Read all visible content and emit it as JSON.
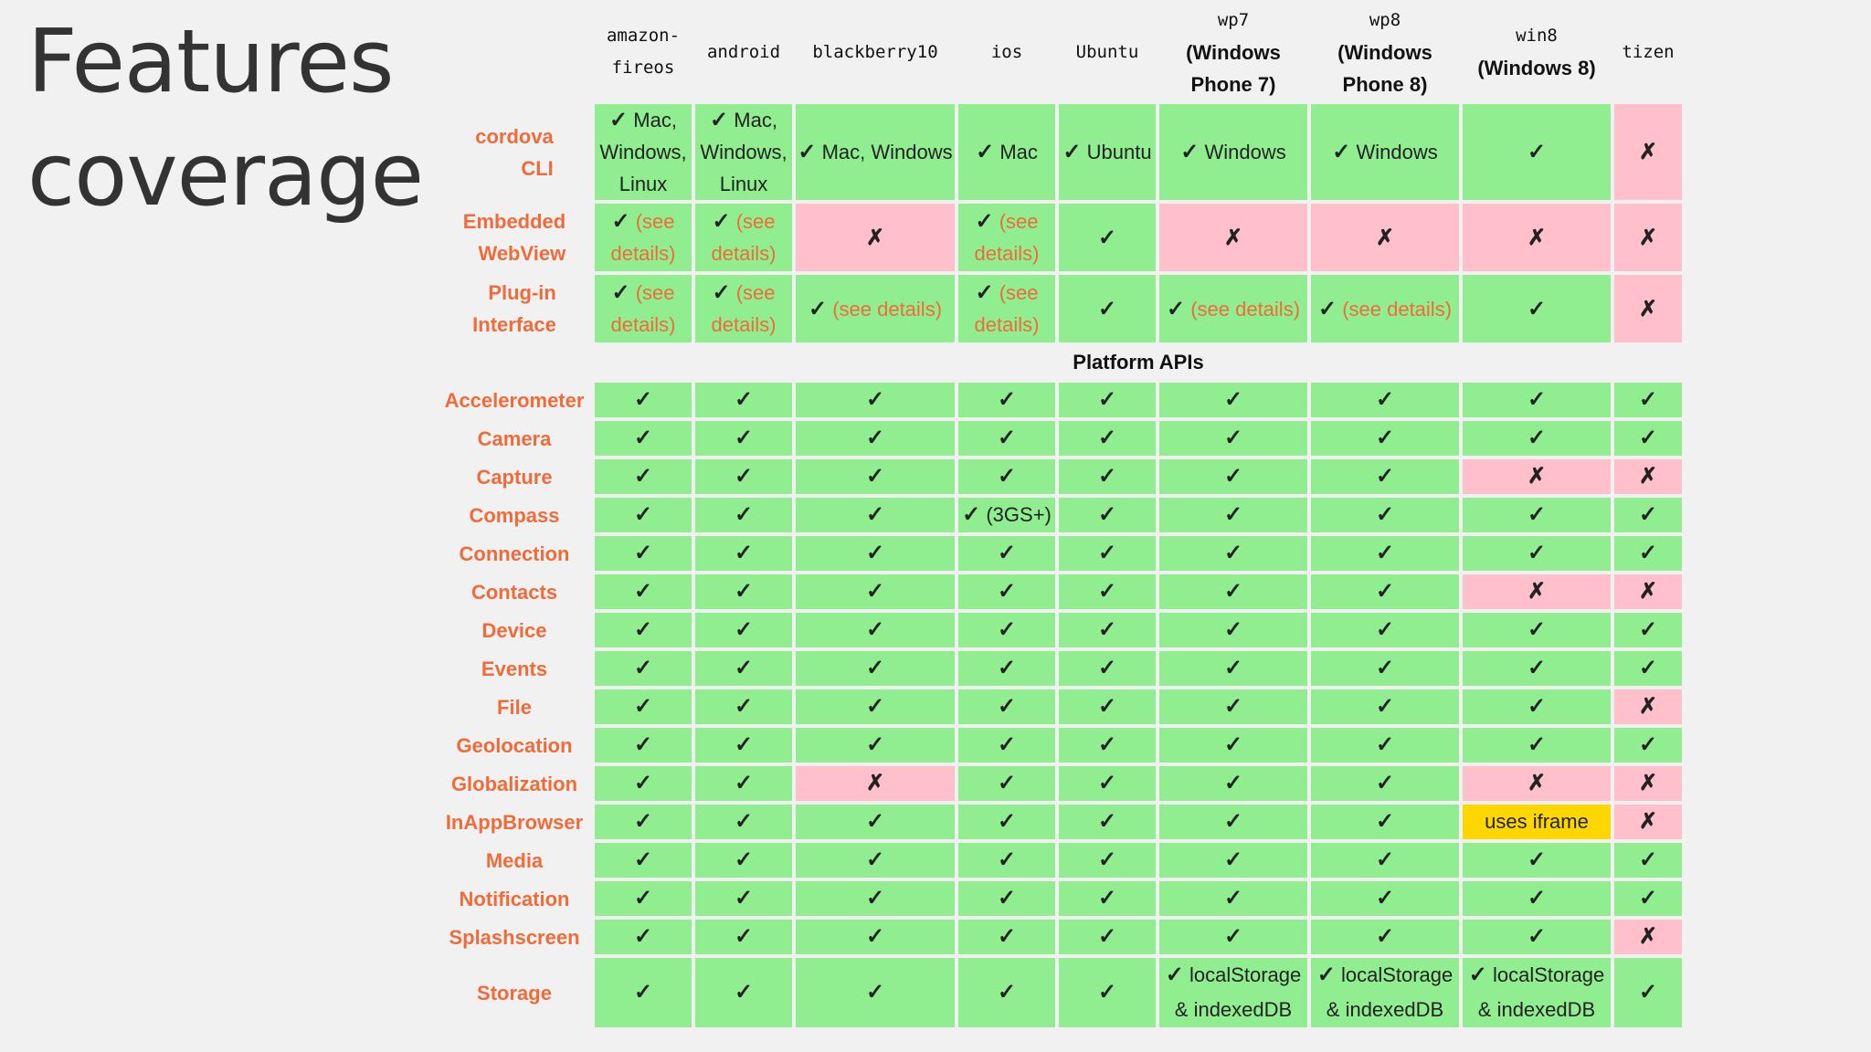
{
  "slide": {
    "title_line1": "Features",
    "title_line2": "coverage"
  },
  "platforms": [
    {
      "code": "amazon-fireos",
      "code_lines": [
        "amazon-",
        "fireos"
      ],
      "sub": []
    },
    {
      "code": "android",
      "code_lines": [
        "android"
      ],
      "sub": []
    },
    {
      "code": "blackberry10",
      "code_lines": [
        "blackberry10"
      ],
      "sub": []
    },
    {
      "code": "ios",
      "code_lines": [
        "ios"
      ],
      "sub": []
    },
    {
      "code": "Ubuntu",
      "code_lines": [
        "Ubuntu"
      ],
      "sub": []
    },
    {
      "code": "wp7",
      "code_lines": [
        "wp7"
      ],
      "sub": [
        "(Windows",
        "Phone 7)"
      ]
    },
    {
      "code": "wp8",
      "code_lines": [
        "wp8"
      ],
      "sub": [
        "(Windows",
        "Phone 8)"
      ]
    },
    {
      "code": "win8",
      "code_lines": [
        "win8"
      ],
      "sub": [
        "(Windows 8)"
      ]
    },
    {
      "code": "tizen",
      "code_lines": [
        "tizen"
      ],
      "sub": []
    }
  ],
  "tool_rows": [
    {
      "label_lines": [
        "cordova",
        "CLI"
      ],
      "size": "tall",
      "cells": [
        {
          "status": "yes",
          "mark": "✓",
          "text": "Mac, Windows, Linux"
        },
        {
          "status": "yes",
          "mark": "✓",
          "text": "Mac, Windows, Linux"
        },
        {
          "status": "yes",
          "mark": "✓",
          "text": "Mac, Windows"
        },
        {
          "status": "yes",
          "mark": "✓",
          "text": "Mac"
        },
        {
          "status": "yes",
          "mark": "✓",
          "text": "Ubuntu"
        },
        {
          "status": "yes",
          "mark": "✓",
          "text": "Windows"
        },
        {
          "status": "yes",
          "mark": "✓",
          "text": "Windows"
        },
        {
          "status": "yes",
          "mark": "✓",
          "text": ""
        },
        {
          "status": "no",
          "mark": "✗",
          "text": ""
        }
      ]
    },
    {
      "label_lines": [
        "Embedded",
        "WebView"
      ],
      "size": "mid",
      "cells": [
        {
          "status": "yes",
          "mark": "✓",
          "note": "(see details)"
        },
        {
          "status": "yes",
          "mark": "✓",
          "note": "(see details)"
        },
        {
          "status": "no",
          "mark": "✗"
        },
        {
          "status": "yes",
          "mark": "✓",
          "note": "(see details)"
        },
        {
          "status": "yes",
          "mark": "✓"
        },
        {
          "status": "no",
          "mark": "✗"
        },
        {
          "status": "no",
          "mark": "✗"
        },
        {
          "status": "no",
          "mark": "✗"
        },
        {
          "status": "no",
          "mark": "✗"
        }
      ]
    },
    {
      "label_lines": [
        "Plug-in",
        "Interface"
      ],
      "size": "mid",
      "cells": [
        {
          "status": "yes",
          "mark": "✓",
          "note": "(see details)"
        },
        {
          "status": "yes",
          "mark": "✓",
          "note": "(see details)"
        },
        {
          "status": "yes",
          "mark": "✓",
          "note": "(see details)"
        },
        {
          "status": "yes",
          "mark": "✓",
          "note": "(see details)"
        },
        {
          "status": "yes",
          "mark": "✓"
        },
        {
          "status": "yes",
          "mark": "✓",
          "note": "(see details)"
        },
        {
          "status": "yes",
          "mark": "✓",
          "note": "(see details)"
        },
        {
          "status": "yes",
          "mark": "✓"
        },
        {
          "status": "no",
          "mark": "✗"
        }
      ]
    }
  ],
  "section_title": "Platform APIs",
  "api_rows": [
    {
      "label": "Accelerometer",
      "cells": [
        "yes",
        "yes",
        "yes",
        "yes",
        "yes",
        "yes",
        "yes",
        "yes",
        "yes"
      ]
    },
    {
      "label": "Camera",
      "cells": [
        "yes",
        "yes",
        "yes",
        "yes",
        "yes",
        "yes",
        "yes",
        "yes",
        "yes"
      ]
    },
    {
      "label": "Capture",
      "cells": [
        "yes",
        "yes",
        "yes",
        "yes",
        "yes",
        "yes",
        "yes",
        "no",
        "no"
      ]
    },
    {
      "label": "Compass",
      "cells": [
        "yes",
        "yes",
        "yes",
        {
          "status": "yes",
          "text": "(3GS+)"
        },
        "yes",
        "yes",
        "yes",
        "yes",
        "yes"
      ]
    },
    {
      "label": "Connection",
      "cells": [
        "yes",
        "yes",
        "yes",
        "yes",
        "yes",
        "yes",
        "yes",
        "yes",
        "yes"
      ]
    },
    {
      "label": "Contacts",
      "cells": [
        "yes",
        "yes",
        "yes",
        "yes",
        "yes",
        "yes",
        "yes",
        "no",
        "no"
      ]
    },
    {
      "label": "Device",
      "cells": [
        "yes",
        "yes",
        "yes",
        "yes",
        "yes",
        "yes",
        "yes",
        "yes",
        "yes"
      ]
    },
    {
      "label": "Events",
      "cells": [
        "yes",
        "yes",
        "yes",
        "yes",
        "yes",
        "yes",
        "yes",
        "yes",
        "yes"
      ]
    },
    {
      "label": "File",
      "cells": [
        "yes",
        "yes",
        "yes",
        "yes",
        "yes",
        "yes",
        "yes",
        "yes",
        "no"
      ]
    },
    {
      "label": "Geolocation",
      "cells": [
        "yes",
        "yes",
        "yes",
        "yes",
        "yes",
        "yes",
        "yes",
        "yes",
        "yes"
      ]
    },
    {
      "label": "Globalization",
      "cells": [
        "yes",
        "yes",
        "no",
        "yes",
        "yes",
        "yes",
        "yes",
        "no",
        "no"
      ]
    },
    {
      "label": "InAppBrowser",
      "cells": [
        "yes",
        "yes",
        "yes",
        "yes",
        "yes",
        "yes",
        "yes",
        {
          "status": "partial",
          "text": "uses iframe"
        },
        "no"
      ]
    },
    {
      "label": "Media",
      "cells": [
        "yes",
        "yes",
        "yes",
        "yes",
        "yes",
        "yes",
        "yes",
        "yes",
        "yes"
      ]
    },
    {
      "label": "Notification",
      "cells": [
        "yes",
        "yes",
        "yes",
        "yes",
        "yes",
        "yes",
        "yes",
        "yes",
        "yes"
      ]
    },
    {
      "label": "Splashscreen",
      "cells": [
        "yes",
        "yes",
        "yes",
        "yes",
        "yes",
        "yes",
        "yes",
        "yes",
        "no"
      ]
    },
    {
      "label": "Storage",
      "size": "storage",
      "cells": [
        "yes",
        "yes",
        "yes",
        "yes",
        "yes",
        {
          "status": "yes",
          "text": "localStorage & indexedDB"
        },
        {
          "status": "yes",
          "text": "localStorage & indexedDB"
        },
        {
          "status": "yes",
          "text": "localStorage & indexedDB"
        },
        "yes"
      ]
    }
  ],
  "marks": {
    "yes": "✓",
    "no": "✗"
  },
  "colors": {
    "supported": "#90ee90",
    "unsupported": "#ffc0cb",
    "partial": "#ffd700",
    "row_label": "#ef6c3a",
    "see_details": "#ef6c3a"
  }
}
